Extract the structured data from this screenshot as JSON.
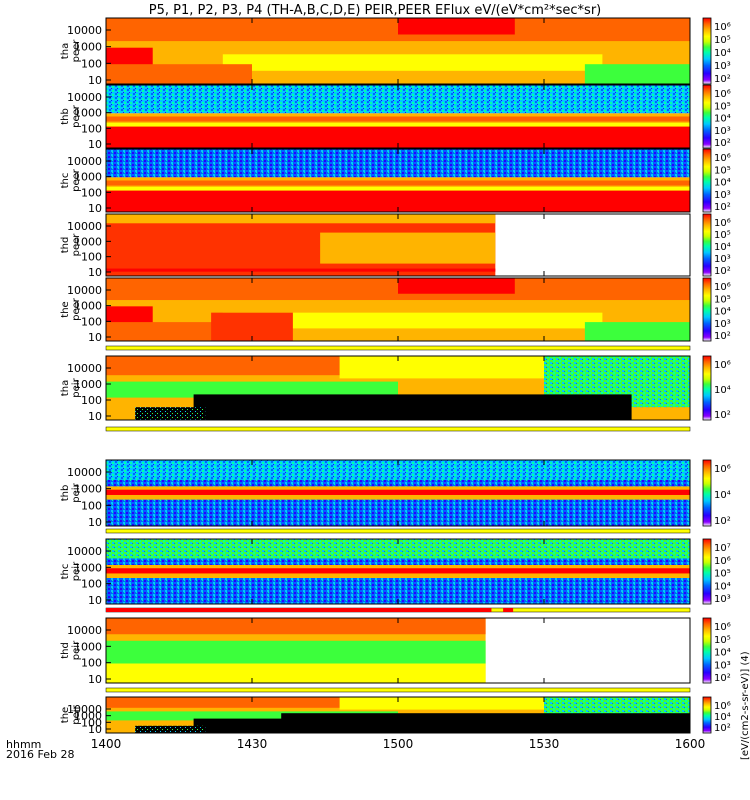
{
  "title": "P5, P1, P2, P3, P4 (TH-A,B,C,D,E) PEIR,PEER EFlux eV/(eV*cm²*sec*sr)",
  "time_axis": {
    "label_line1": "hhmm",
    "label_line2": "2016 Feb 28",
    "ticks": [
      "1400",
      "1430",
      "1500",
      "1530",
      "1600"
    ]
  },
  "colorbar_units": "[eV/(cm2-s-sr-eV)] (4)",
  "colors": {
    "rainbow": [
      "#ffffff",
      "#8c00ff",
      "#2800ff",
      "#0064ff",
      "#00c8ff",
      "#00ffaa",
      "#3cff3c",
      "#c8ff00",
      "#ffff00",
      "#ffb400",
      "#ff6400",
      "#ff0000"
    ],
    "black": "#000000",
    "flag_yellow": "#ffff00",
    "flag_red": "#ff0000",
    "no_data": "#ffffff"
  },
  "chart_data": {
    "type": "heatmap",
    "x_range": [
      "1400",
      "1600"
    ],
    "panels": [
      {
        "probe": "tha",
        "product": "peer",
        "ylabel": "tha peer",
        "yticks": [
          "10000",
          "1000",
          "100",
          "10"
        ],
        "cbar_ticks": [
          "10⁶",
          "10⁵",
          "10⁴",
          "10³",
          "10²"
        ],
        "data_end": "1600",
        "flag_bar": false
      },
      {
        "probe": "thb",
        "product": "peer",
        "ylabel": "thb peer",
        "yticks": [
          "10000",
          "1000",
          "100",
          "10"
        ],
        "cbar_ticks": [
          "10⁶",
          "10⁵",
          "10⁴",
          "10³",
          "10²"
        ],
        "data_end": "1600",
        "flag_bar": false
      },
      {
        "probe": "thc",
        "product": "peer",
        "ylabel": "thc peer",
        "yticks": [
          "10000",
          "1000",
          "100",
          "10"
        ],
        "cbar_ticks": [
          "10⁶",
          "10⁵",
          "10⁴",
          "10³",
          "10²"
        ],
        "data_end": "1600",
        "flag_bar": false
      },
      {
        "probe": "thd",
        "product": "peer",
        "ylabel": "thd peer",
        "yticks": [
          "10000",
          "1000",
          "100",
          "10"
        ],
        "cbar_ticks": [
          "10⁶",
          "10⁵",
          "10⁴",
          "10³",
          "10²"
        ],
        "data_end": "1520",
        "flag_bar": false
      },
      {
        "probe": "the",
        "product": "peer",
        "ylabel": "the peer",
        "yticks": [
          "10000",
          "1000",
          "100",
          "10"
        ],
        "cbar_ticks": [
          "10⁶",
          "10⁵",
          "10⁴",
          "10³",
          "10²"
        ],
        "data_end": "1600",
        "flag_bar": true
      },
      {
        "probe": "tha",
        "product": "peir",
        "ylabel": "tha peir",
        "yticks": [
          "10000",
          "1000",
          "100",
          "10"
        ],
        "cbar_ticks": [
          "10⁶",
          "10⁴",
          "10²"
        ],
        "data_end": "1600",
        "flag_bar": true
      },
      {
        "probe": "thb",
        "product": "peir",
        "ylabel": "thb peir",
        "yticks": [
          "10000",
          "1000",
          "100",
          "10"
        ],
        "cbar_ticks": [
          "10⁶",
          "10⁴",
          "10²"
        ],
        "data_end": "1600",
        "flag_bar": true
      },
      {
        "probe": "thc",
        "product": "peir",
        "ylabel": "thc peir",
        "yticks": [
          "10000",
          "1000",
          "100",
          "10"
        ],
        "cbar_ticks": [
          "10⁷",
          "10⁶",
          "10⁵",
          "10⁴",
          "10³"
        ],
        "data_end": "1600",
        "flag_bar": true
      },
      {
        "probe": "thd",
        "product": "peir",
        "ylabel": "thd peir",
        "yticks": [
          "10000",
          "1000",
          "100",
          "10"
        ],
        "cbar_ticks": [
          "10⁶",
          "10⁵",
          "10⁴",
          "10³",
          "10²"
        ],
        "data_end": "1518",
        "flag_bar": true
      },
      {
        "probe": "the",
        "product": "peir",
        "ylabel": "the peir",
        "yticks": [
          "10000",
          "1000",
          "100",
          "10"
        ],
        "cbar_ticks": [
          "10⁶",
          "10⁴",
          "10²"
        ],
        "data_end": "1600",
        "flag_bar": false
      }
    ]
  }
}
